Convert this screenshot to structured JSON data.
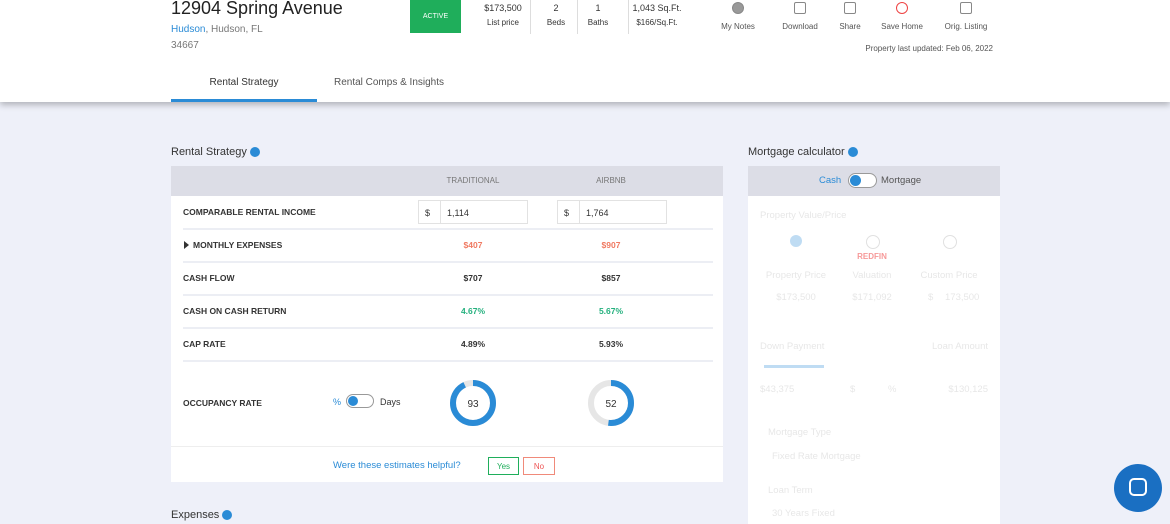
{
  "header": {
    "title": "12904 Spring Avenue",
    "city_link": "Hudson",
    "address_rest": ", Hudson, FL",
    "zip": "34667",
    "status": "ACTIVE",
    "stats": [
      {
        "value": "$173,500",
        "label": "List price"
      },
      {
        "value": "2",
        "label": "Beds"
      },
      {
        "value": "1",
        "label": "Baths"
      },
      {
        "value": "1,043 Sq.Ft.",
        "label": "$166/Sq.Ft."
      }
    ],
    "actions": [
      "My Notes",
      "Download",
      "Share",
      "Save Home",
      "Orig. Listing"
    ],
    "updated": "Property last updated: Feb 06, 2022"
  },
  "tabs": [
    "Rental Strategy",
    "Rental Comps & Insights"
  ],
  "rental": {
    "title": "Rental Strategy",
    "columns": [
      "TRADITIONAL",
      "AIRBNB"
    ],
    "income": {
      "label": "COMPARABLE RENTAL INCOME",
      "currency": "$",
      "values": [
        "1,114",
        "1,764"
      ]
    },
    "rows": [
      {
        "label": "MONTHLY EXPENSES",
        "values": [
          "$407",
          "$907"
        ]
      },
      {
        "label": "CASH FLOW",
        "values": [
          "$707",
          "$857"
        ]
      },
      {
        "label": "CASH ON CASH RETURN",
        "values": [
          "4.67%",
          "5.67%"
        ]
      },
      {
        "label": "CAP RATE",
        "values": [
          "4.89%",
          "5.93%"
        ]
      }
    ],
    "occupancy": {
      "label": "OCCUPANCY RATE",
      "unit_percent": "%",
      "unit_days": "Days",
      "values": [
        93,
        52
      ]
    },
    "feedback": {
      "question": "Were these estimates helpful?",
      "yes": "Yes",
      "no": "No"
    }
  },
  "expenses_title": "Expenses",
  "mortgage": {
    "title": "Mortgage calculator",
    "cash": "Cash",
    "mortgage": "Mortgage",
    "value_label": "Property Value/Price",
    "options": [
      {
        "label": "Property Price",
        "value": "$173,500"
      },
      {
        "label": "Valuation",
        "brand": "REDFIN",
        "value": "$171,092"
      },
      {
        "label": "Custom Price",
        "currency": "$",
        "value": "173,500"
      }
    ],
    "down_payment": "Down Payment",
    "loan_amount": "Loan Amount",
    "down_value": "$43,375",
    "dollar": "$",
    "percent": "%",
    "loan_value": "$130,125",
    "mortgage_type": "Mortgage Type",
    "mortgage_type_value": "Fixed Rate Mortgage",
    "loan_term": "Loan Term",
    "loan_term_value": "30 Years Fixed"
  }
}
